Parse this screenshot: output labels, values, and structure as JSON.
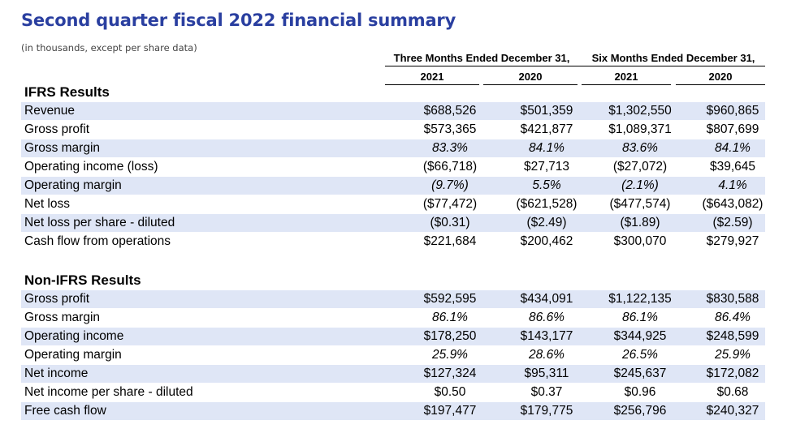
{
  "title": "Second quarter fiscal 2022 financial summary",
  "subtitle": "(in thousands, except per share data)",
  "headers": {
    "three_months": "Three Months Ended December 31,",
    "six_months": "Six Months Ended December 31,",
    "years": [
      "2021",
      "2020",
      "2021",
      "2020"
    ]
  },
  "sections": [
    {
      "title": "IFRS Results",
      "rows": [
        {
          "label": "Revenue",
          "values": [
            "$688,526",
            "$501,359",
            "$1,302,550",
            "$960,865"
          ],
          "italic": false
        },
        {
          "label": "Gross profit",
          "values": [
            "$573,365",
            "$421,877",
            "$1,089,371",
            "$807,699"
          ],
          "italic": false
        },
        {
          "label": "Gross margin",
          "values": [
            "83.3%",
            "84.1%",
            "83.6%",
            "84.1%"
          ],
          "italic": true
        },
        {
          "label": "Operating income (loss)",
          "values": [
            "($66,718)",
            "$27,713",
            "($27,072)",
            "$39,645"
          ],
          "italic": false
        },
        {
          "label": "Operating margin",
          "values": [
            "(9.7%)",
            "5.5%",
            "(2.1%)",
            "4.1%"
          ],
          "italic": true
        },
        {
          "label": "Net loss",
          "values": [
            "($77,472)",
            "($621,528)",
            "($477,574)",
            "($643,082)"
          ],
          "italic": false
        },
        {
          "label": "Net loss per share - diluted",
          "values": [
            "($0.31)",
            "($2.49)",
            "($1.89)",
            "($2.59)"
          ],
          "italic": false
        },
        {
          "label": "Cash flow from operations",
          "values": [
            "$221,684",
            "$200,462",
            "$300,070",
            "$279,927"
          ],
          "italic": false
        }
      ]
    },
    {
      "title": "Non-IFRS Results",
      "rows": [
        {
          "label": "Gross profit",
          "values": [
            "$592,595",
            "$434,091",
            "$1,122,135",
            "$830,588"
          ],
          "italic": false
        },
        {
          "label": "Gross margin",
          "values": [
            "86.1%",
            "86.6%",
            "86.1%",
            "86.4%"
          ],
          "italic": true
        },
        {
          "label": "Operating income",
          "values": [
            "$178,250",
            "$143,177",
            "$344,925",
            "$248,599"
          ],
          "italic": false
        },
        {
          "label": "Operating margin",
          "values": [
            "25.9%",
            "28.6%",
            "26.5%",
            "25.9%"
          ],
          "italic": true
        },
        {
          "label": "Net income",
          "values": [
            "$127,324",
            "$95,311",
            "$245,637",
            "$172,082"
          ],
          "italic": false
        },
        {
          "label": "Net income per share - diluted",
          "values": [
            "$0.50",
            "$0.37",
            "$0.96",
            "$0.68"
          ],
          "italic": false
        },
        {
          "label": "Free cash flow",
          "values": [
            "$197,477",
            "$179,775",
            "$256,796",
            "$240,327"
          ],
          "italic": false
        }
      ]
    }
  ],
  "colors": {
    "title": "#2a3fa0",
    "row_shade": "#dfe6f6"
  }
}
